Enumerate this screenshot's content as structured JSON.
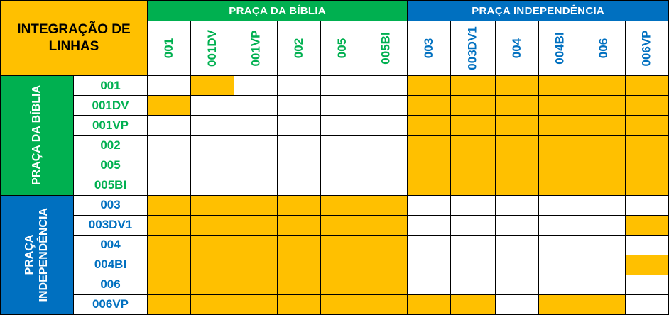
{
  "title": "INTEGRAÇÃO DE LINHAS",
  "groups": [
    {
      "name": "PRAÇA DA BÍBLIA",
      "side_label": "PRAÇA DA BÍBLIA",
      "color": "#00B050",
      "text_color": "#00B050",
      "lines": [
        "001",
        "001DV",
        "001VP",
        "002",
        "005",
        "005BI"
      ]
    },
    {
      "name": "PRAÇA INDEPENDÊNCIA",
      "side_label": "PRAÇA\nINDEPENDÊNCIA",
      "color": "#0070C0",
      "text_color": "#0070C0",
      "lines": [
        "003",
        "003DV1",
        "004",
        "004BI",
        "006",
        "006VP"
      ]
    }
  ],
  "highlight_color": "#FFC000",
  "matrix": [
    [
      0,
      1,
      0,
      0,
      0,
      0,
      1,
      1,
      1,
      1,
      1,
      1
    ],
    [
      1,
      0,
      0,
      0,
      0,
      0,
      1,
      1,
      1,
      1,
      1,
      1
    ],
    [
      0,
      0,
      0,
      0,
      0,
      0,
      1,
      1,
      1,
      1,
      1,
      1
    ],
    [
      0,
      0,
      0,
      0,
      0,
      0,
      1,
      1,
      1,
      1,
      1,
      1
    ],
    [
      0,
      0,
      0,
      0,
      0,
      0,
      1,
      1,
      1,
      1,
      1,
      1
    ],
    [
      0,
      0,
      0,
      0,
      0,
      0,
      1,
      1,
      1,
      1,
      1,
      1
    ],
    [
      1,
      1,
      1,
      1,
      1,
      1,
      0,
      0,
      0,
      0,
      0,
      0
    ],
    [
      1,
      1,
      1,
      1,
      1,
      1,
      0,
      0,
      0,
      0,
      0,
      1
    ],
    [
      1,
      1,
      1,
      1,
      1,
      1,
      0,
      0,
      0,
      0,
      0,
      0
    ],
    [
      1,
      1,
      1,
      1,
      1,
      1,
      0,
      0,
      0,
      0,
      0,
      1
    ],
    [
      1,
      1,
      1,
      1,
      1,
      1,
      0,
      0,
      0,
      0,
      0,
      0
    ],
    [
      1,
      1,
      1,
      1,
      1,
      1,
      1,
      1,
      0,
      1,
      1,
      0
    ]
  ]
}
